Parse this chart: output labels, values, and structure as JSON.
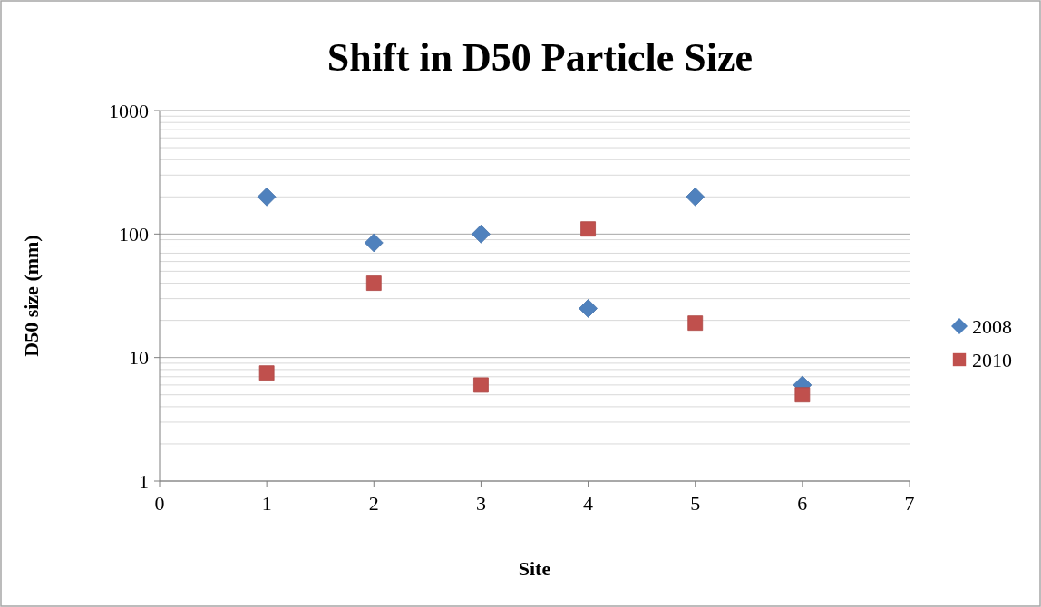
{
  "chart_data": {
    "type": "scatter",
    "title": "Shift in D50 Particle Size",
    "xlabel": "Site",
    "ylabel": "D50 size (mm)",
    "xlim": [
      0,
      7
    ],
    "xticks": [
      0,
      1,
      2,
      3,
      4,
      5,
      6,
      7
    ],
    "ylim": [
      1,
      1000
    ],
    "yticks": [
      1,
      10,
      100,
      1000
    ],
    "log": "y",
    "grid": "y",
    "legend": "right",
    "series": [
      {
        "name": "2008",
        "color": "#4f81bd",
        "marker": "diamond",
        "x": [
          1,
          2,
          3,
          4,
          5,
          6
        ],
        "values": [
          200,
          85,
          100,
          25,
          200,
          6
        ]
      },
      {
        "name": "2010",
        "color": "#c0504d",
        "marker": "square",
        "x": [
          1,
          2,
          3,
          4,
          5,
          6
        ],
        "values": [
          7.5,
          40,
          6,
          110,
          19,
          5
        ]
      }
    ]
  }
}
